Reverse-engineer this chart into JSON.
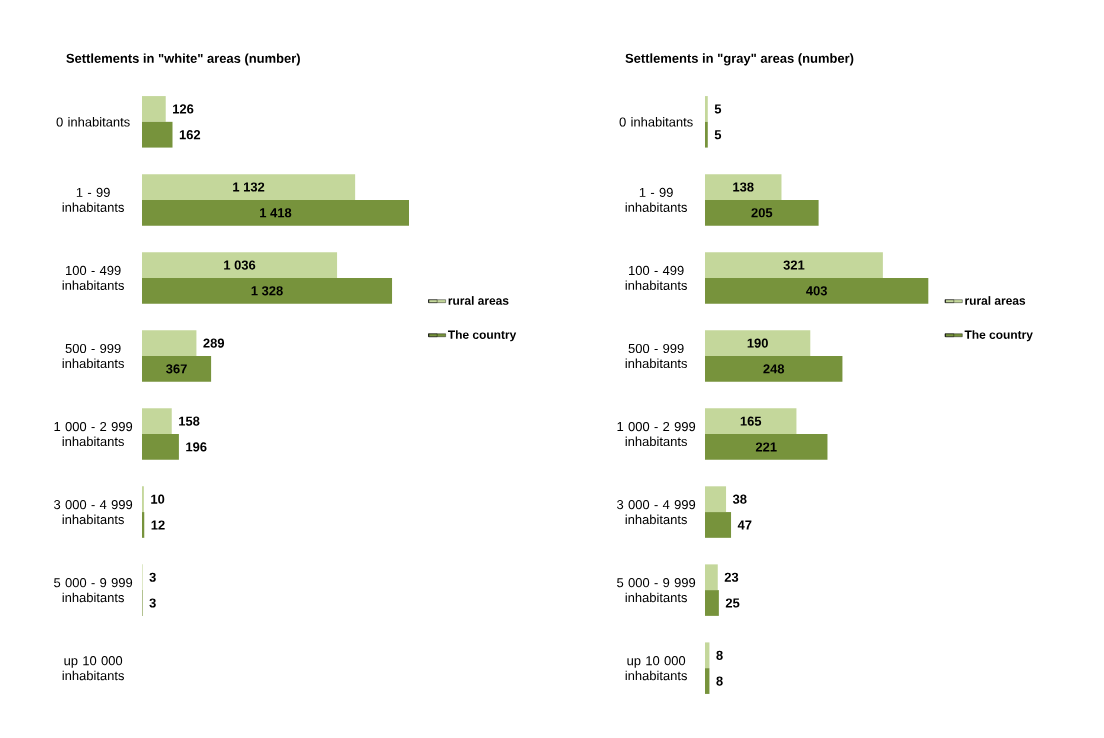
{
  "chart_data": [
    {
      "type": "bar",
      "orientation": "horizontal",
      "title": "Settlements in \"white\" areas (number)",
      "tick_labels": "y",
      "legend": "right",
      "categories": [
        "0 inhabitants",
        "1 - 99 inhabitants",
        "100 - 499 inhabitants",
        "500 - 999 inhabitants",
        "1 000 - 2 999 inhabitants",
        "3 000 - 4 999 inhabitants",
        "5 000 - 9 999 inhabitants",
        "up 10 000 inhabitants"
      ],
      "series": [
        {
          "name": "rural areas",
          "color": "#c4d79b",
          "values": [
            126,
            1132,
            1036,
            289,
            158,
            10,
            3,
            null
          ],
          "value_labels": [
            "126",
            "1 132",
            "1 036",
            "289",
            "158",
            "10",
            "3",
            null
          ]
        },
        {
          "name": "The country",
          "color": "#77933c",
          "values": [
            162,
            1418,
            1328,
            367,
            196,
            12,
            3,
            null
          ],
          "value_labels": [
            "162",
            "1 418",
            "1 328",
            "367",
            "196",
            "12",
            "3",
            null
          ]
        }
      ]
    },
    {
      "type": "bar",
      "orientation": "horizontal",
      "title": "Settlements in \"gray\" areas (number)",
      "tick_labels": "y",
      "legend": "right",
      "categories": [
        "0 inhabitants",
        "1 - 99 inhabitants",
        "100 - 499 inhabitants",
        "500 - 999 inhabitants",
        "1 000 - 2 999 inhabitants",
        "3 000 - 4 999 inhabitants",
        "5 000 - 9 999 inhabitants",
        "up 10 000 inhabitants"
      ],
      "series": [
        {
          "name": "rural areas",
          "color": "#c4d79b",
          "values": [
            5,
            138,
            321,
            190,
            165,
            38,
            23,
            8
          ],
          "value_labels": [
            "5",
            "138",
            "321",
            "190",
            "165",
            "38",
            "23",
            "8"
          ]
        },
        {
          "name": "The country",
          "color": "#77933c",
          "values": [
            5,
            205,
            403,
            248,
            221,
            47,
            25,
            8
          ],
          "value_labels": [
            "5",
            "205",
            "403",
            "248",
            "221",
            "47",
            "25",
            "8"
          ]
        }
      ]
    }
  ]
}
